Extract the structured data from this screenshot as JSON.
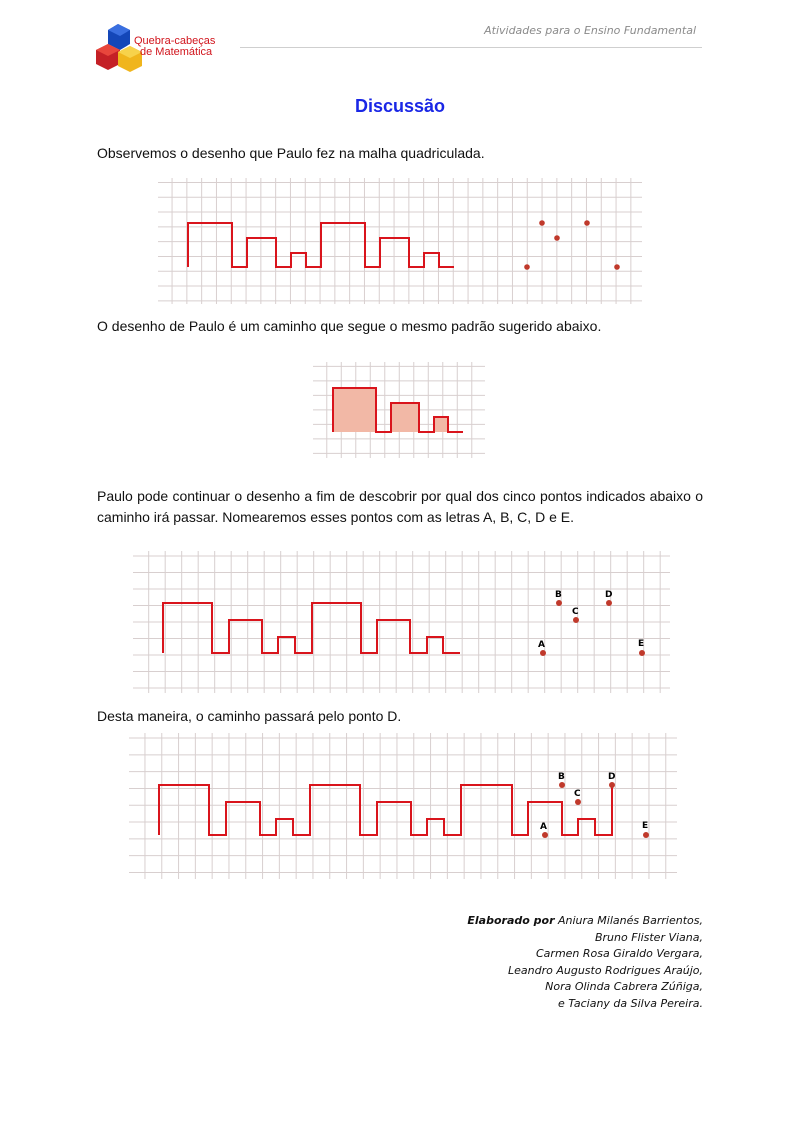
{
  "header": {
    "subject": "Atividades para o Ensino Fundamental",
    "logo_line1": "Quebra-cabeças",
    "logo_line2": "de Matemática"
  },
  "title": "Discussão",
  "paragraphs": {
    "p1": "Observemos o desenho que Paulo fez na malha quadriculada.",
    "p2": "O desenho de Paulo é um caminho que segue o mesmo padrão sugerido abaixo.",
    "p3": "Paulo pode continuar o desenho a fim de descobrir por qual dos cinco pontos indicados abaixo o caminho irá passar. Nomearemos esses pontos com as letras A, B, C, D e E.",
    "p4": "Desta maneira, o caminho passará pelo ponto D."
  },
  "points": {
    "a": "A",
    "b": "B",
    "c": "C",
    "d": "D",
    "e": "E"
  },
  "credits": {
    "lead": "Elaborado por",
    "lines": [
      "Aniura Milanés Barrientos,",
      "Bruno Flister Viana,",
      "Carmen Rosa Giraldo Vergara,",
      "Leandro Augusto Rodrigues Araújo,",
      "Nora Olinda Cabrera Zúñiga,",
      "e Taciany da Silva Pereira."
    ]
  },
  "colors": {
    "title": "#1a27e6",
    "path": "#d9141c",
    "point": "#c0392b",
    "grid": "#d8cfcf",
    "fill": "#f2b8a6"
  }
}
